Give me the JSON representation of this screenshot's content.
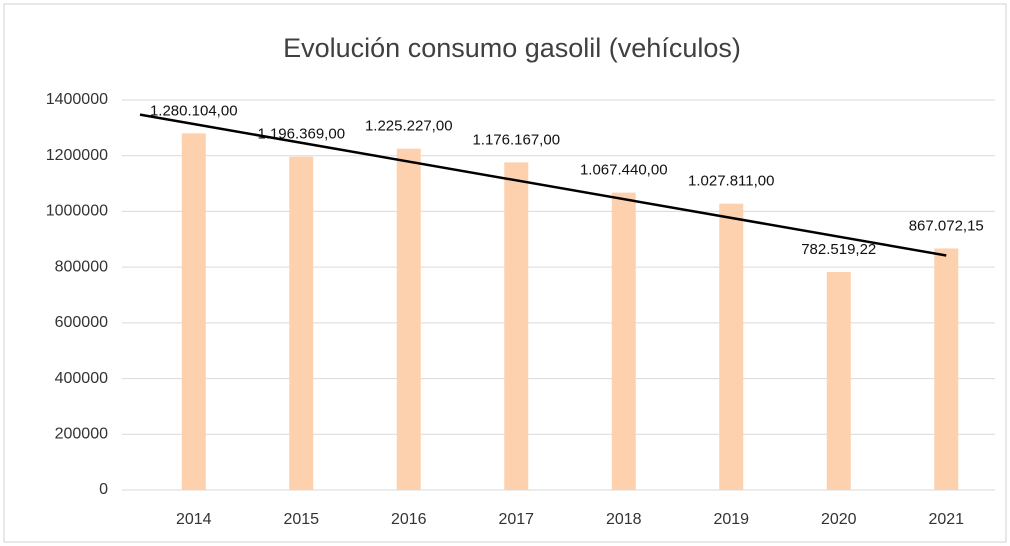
{
  "chart_data": {
    "type": "bar",
    "title": "Evolución consumo gasolil (vehículos)",
    "categories": [
      "2014",
      "2015",
      "2016",
      "2017",
      "2018",
      "2019",
      "2020",
      "2021"
    ],
    "values": [
      1280104,
      1196369,
      1225227,
      1176167,
      1067440,
      1027811,
      782519.22,
      867072.15
    ],
    "value_labels": [
      "1.280.104,00",
      "1.196.369,00",
      "1.225.227,00",
      "1.176.167,00",
      "1.067.440,00",
      "1.027.811,00",
      "782.519,22",
      "867.072,15"
    ],
    "color": "#fdd1ae",
    "trendline": true,
    "ylim": [
      0,
      1400000
    ],
    "yticks": [
      0,
      200000,
      400000,
      600000,
      800000,
      1000000,
      1200000,
      1400000
    ],
    "grid": true
  }
}
